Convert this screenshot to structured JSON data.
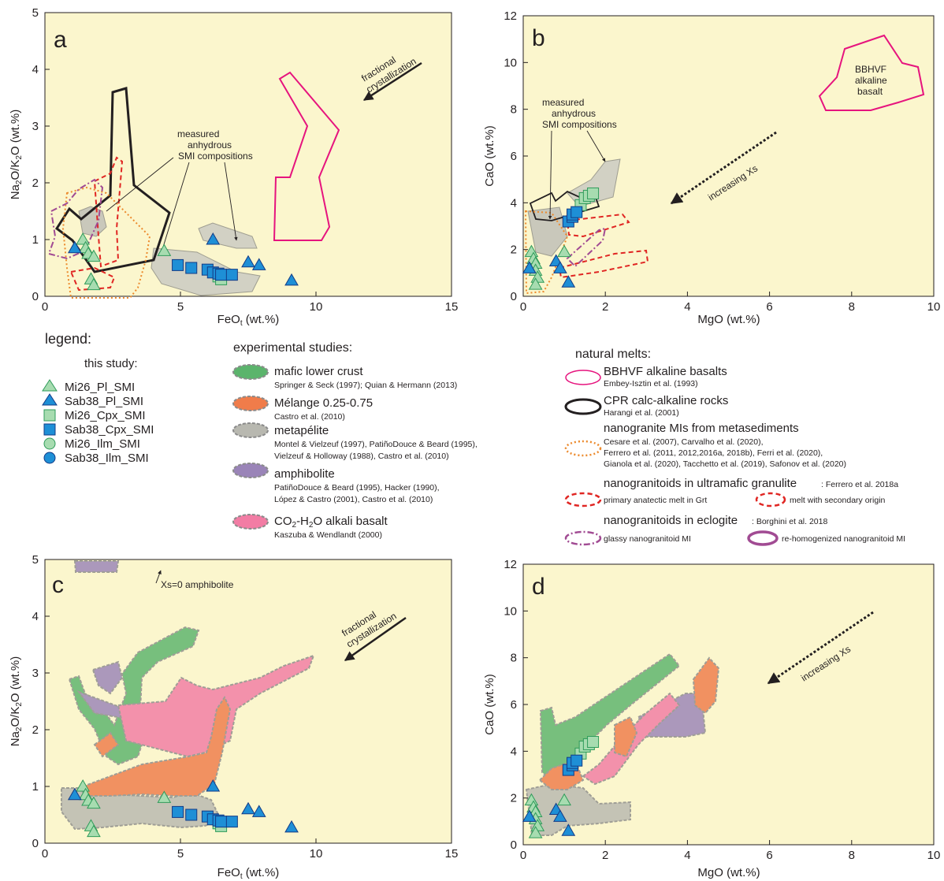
{
  "colors": {
    "bg": "#fbf6cd",
    "tri_green": "#a7dcb0",
    "tri_green_edge": "#2f9b5a",
    "tri_blue": "#1e8fd6",
    "tri_blue_edge": "#133b86",
    "sq_green": "#a7dcb0",
    "sq_blue": "#1e8fd6",
    "magenta": "#e6147e",
    "black": "#231f20",
    "orange": "#ec8a2d",
    "red": "#e02623",
    "purple": "#a14b93",
    "gray": "#b7b7ad",
    "exp_green": "#5bb46c",
    "exp_orange": "#f07c4a",
    "exp_gray": "#b8b8b0",
    "exp_purple": "#9a84b8",
    "exp_pink": "#f27ca4"
  },
  "panels": {
    "a": {
      "letter": "a",
      "xlabel": "FeOt (wt.%)",
      "ylabel": "Na2O/K2O (wt.%)",
      "xticks": [
        "0",
        "5",
        "10",
        "15"
      ],
      "yticks": [
        "0",
        "1",
        "2",
        "3",
        "4",
        "5"
      ]
    },
    "b": {
      "letter": "b",
      "xlabel": "MgO (wt.%)",
      "ylabel": "CaO (wt.%)",
      "xticks": [
        "0",
        "2",
        "4",
        "6",
        "8",
        "10"
      ],
      "yticks": [
        "0",
        "2",
        "4",
        "6",
        "8",
        "10",
        "12"
      ]
    },
    "c": {
      "letter": "c",
      "xlabel": "FeOt (wt.%)",
      "ylabel": "Na2O/K2O (wt.%)",
      "xticks": [
        "0",
        "5",
        "10",
        "15"
      ],
      "yticks": [
        "0",
        "1",
        "2",
        "3",
        "4",
        "5"
      ]
    },
    "d": {
      "letter": "d",
      "xlabel": "MgO (wt.%)",
      "ylabel": "CaO (wt.%)",
      "xticks": [
        "0",
        "2",
        "4",
        "6",
        "8",
        "10"
      ],
      "yticks": [
        "0",
        "2",
        "4",
        "6",
        "8",
        "10",
        "12"
      ]
    }
  },
  "annotations": {
    "frac1": "fractional",
    "frac2": "crystallization",
    "smi_a1": "measured",
    "smi_a2": "anhydrous",
    "smi_a3": "SMI compositions",
    "smi_b1": "measured",
    "smi_b2": "anhydrous",
    "smi_b3": "SMI compositions",
    "bbhvf1": "BBHVF",
    "bbhvf2": "alkaline",
    "bbhvf3": "basalt",
    "xs": "increasing Xs",
    "xs0": "Xs=0 amphibolite"
  },
  "legend": {
    "title": "legend:",
    "this_study": "this study:",
    "items": [
      "Mi26_Pl_SMI",
      "Sab38_Pl_SMI",
      "Mi26_Cpx_SMI",
      "Sab38_Cpx_SMI",
      "Mi26_Ilm_SMI",
      "Sab38_Ilm_SMI"
    ],
    "exp_title": "experimental studies:",
    "exp": [
      {
        "main": "mafic lower crust",
        "refs": [
          "Springer & Seck (1997); Quian & Hermann (2013)"
        ]
      },
      {
        "main": "Mélange 0.25-0.75",
        "refs": [
          "Castro et al. (2010)"
        ]
      },
      {
        "main": "metapélite",
        "refs": [
          "Montel & Vielzeuf (1997), PatiñoDouce & Beard (1995),",
          "Vielzeuf & Holloway (1988), Castro et al. (2010)"
        ]
      },
      {
        "main": "amphibolite",
        "refs": [
          "PatiñoDouce & Beard (1995), Hacker (1990),",
          "López & Castro (2001), Castro et al. (2010)"
        ]
      },
      {
        "main": "CO2-H2O alkali basalt",
        "refs": [
          "Kaszuba & Wendlandt (2000)"
        ]
      }
    ],
    "nat_title": "natural melts:",
    "nat": {
      "bbhvf": "BBHVF alkaline basalts",
      "bbhvf_ref": "Embey-Isztin et al. (1993)",
      "cpr": "CPR calc-alkaline rocks",
      "cpr_ref": "Harangi et al. (2001)",
      "nano": "nanogranite MIs from metasediments",
      "nano_refs": [
        "Cesare et al. (2007), Carvalho et al. (2020),",
        "Ferrero et al. (2011, 2012,2016a, 2018b), Ferri et al. (2020),",
        "Gianola et al. (2020), Tacchetto et al. (2019), Safonov et al. (2020)"
      ],
      "ultra": "nanogranitoids in ultramafic granulite",
      "ultra_ref": ": Ferrero et al. 2018a",
      "ultra_a": "primary anatectic melt in Grt",
      "ultra_b": "melt with secondary origin",
      "eclo": "nanogranitoids in eclogite",
      "eclo_ref": ": Borghini et al. 2018",
      "eclo_a": "glassy nanogranitoid MI",
      "eclo_b": "re-homogenized nanogranitoid MI"
    }
  },
  "chart_data": [
    {
      "panel": "a",
      "type": "scatter",
      "xlabel": "FeOt (wt.%)",
      "ylabel": "Na2O/K2O (wt.%)",
      "xlim": [
        0,
        15
      ],
      "ylim": [
        0,
        5
      ],
      "series": [
        {
          "name": "Mi26_Pl_SMI",
          "points": [
            [
              1.4,
              1.0
            ],
            [
              1.5,
              0.85
            ],
            [
              1.6,
              0.75
            ],
            [
              1.8,
              0.7
            ],
            [
              1.7,
              0.3
            ],
            [
              1.8,
              0.2
            ],
            [
              4.4,
              0.8
            ]
          ]
        },
        {
          "name": "Sab38_Pl_SMI",
          "points": [
            [
              1.1,
              0.85
            ],
            [
              6.2,
              1.0
            ],
            [
              7.5,
              0.6
            ],
            [
              7.9,
              0.55
            ],
            [
              9.1,
              0.28
            ]
          ]
        },
        {
          "name": "Mi26_Cpx_SMI",
          "points": [
            [
              6.4,
              0.35
            ],
            [
              6.5,
              0.3
            ]
          ]
        },
        {
          "name": "Sab38_Cpx_SMI",
          "points": [
            [
              4.9,
              0.55
            ],
            [
              5.4,
              0.5
            ],
            [
              6.0,
              0.47
            ],
            [
              6.2,
              0.42
            ],
            [
              6.4,
              0.4
            ],
            [
              6.5,
              0.38
            ],
            [
              6.9,
              0.38
            ]
          ]
        }
      ]
    },
    {
      "panel": "b",
      "type": "scatter",
      "xlabel": "MgO (wt.%)",
      "ylabel": "CaO (wt.%)",
      "xlim": [
        0,
        10
      ],
      "ylim": [
        0,
        12
      ],
      "series": [
        {
          "name": "Mi26_Pl_SMI",
          "points": [
            [
              0.2,
              1.9
            ],
            [
              0.25,
              1.6
            ],
            [
              0.3,
              1.4
            ],
            [
              0.3,
              1.1
            ],
            [
              0.35,
              0.8
            ],
            [
              0.3,
              0.5
            ],
            [
              1.0,
              1.9
            ]
          ]
        },
        {
          "name": "Sab38_Pl_SMI",
          "points": [
            [
              0.15,
              1.2
            ],
            [
              0.8,
              1.5
            ],
            [
              0.9,
              1.2
            ],
            [
              1.1,
              0.6
            ]
          ]
        },
        {
          "name": "Mi26_Cpx_SMI",
          "points": [
            [
              1.4,
              3.9
            ],
            [
              1.5,
              4.2
            ],
            [
              1.6,
              4.3
            ],
            [
              1.7,
              4.4
            ]
          ]
        },
        {
          "name": "Sab38_Cpx_SMI",
          "points": [
            [
              1.1,
              3.2
            ],
            [
              1.2,
              3.4
            ],
            [
              1.2,
              3.5
            ],
            [
              1.3,
              3.6
            ]
          ]
        }
      ]
    },
    {
      "panel": "c",
      "type": "scatter",
      "xlabel": "FeOt (wt.%)",
      "ylabel": "Na2O/K2O (wt.%)",
      "xlim": [
        0,
        15
      ],
      "ylim": [
        0,
        5
      ],
      "series": [
        {
          "name": "Mi26_Pl_SMI",
          "points": [
            [
              1.4,
              1.0
            ],
            [
              1.5,
              0.85
            ],
            [
              1.6,
              0.75
            ],
            [
              1.8,
              0.7
            ],
            [
              1.7,
              0.3
            ],
            [
              1.8,
              0.2
            ],
            [
              4.4,
              0.8
            ]
          ]
        },
        {
          "name": "Sab38_Pl_SMI",
          "points": [
            [
              1.1,
              0.85
            ],
            [
              6.2,
              1.0
            ],
            [
              7.5,
              0.6
            ],
            [
              7.9,
              0.55
            ],
            [
              9.1,
              0.28
            ]
          ]
        },
        {
          "name": "Mi26_Cpx_SMI",
          "points": [
            [
              6.4,
              0.35
            ],
            [
              6.5,
              0.3
            ]
          ]
        },
        {
          "name": "Sab38_Cpx_SMI",
          "points": [
            [
              4.9,
              0.55
            ],
            [
              5.4,
              0.5
            ],
            [
              6.0,
              0.47
            ],
            [
              6.2,
              0.42
            ],
            [
              6.4,
              0.4
            ],
            [
              6.5,
              0.38
            ],
            [
              6.9,
              0.38
            ]
          ]
        }
      ]
    },
    {
      "panel": "d",
      "type": "scatter",
      "xlabel": "MgO (wt.%)",
      "ylabel": "CaO (wt.%)",
      "xlim": [
        0,
        10
      ],
      "ylim": [
        0,
        12
      ],
      "series": [
        {
          "name": "Mi26_Pl_SMI",
          "points": [
            [
              0.2,
              1.9
            ],
            [
              0.25,
              1.6
            ],
            [
              0.3,
              1.4
            ],
            [
              0.3,
              1.1
            ],
            [
              0.35,
              0.8
            ],
            [
              0.3,
              0.5
            ],
            [
              1.0,
              1.9
            ]
          ]
        },
        {
          "name": "Sab38_Pl_SMI",
          "points": [
            [
              0.15,
              1.2
            ],
            [
              0.8,
              1.5
            ],
            [
              0.9,
              1.2
            ],
            [
              1.1,
              0.6
            ]
          ]
        },
        {
          "name": "Mi26_Cpx_SMI",
          "points": [
            [
              1.4,
              3.9
            ],
            [
              1.5,
              4.2
            ],
            [
              1.6,
              4.3
            ],
            [
              1.7,
              4.4
            ]
          ]
        },
        {
          "name": "Sab38_Cpx_SMI",
          "points": [
            [
              1.1,
              3.2
            ],
            [
              1.2,
              3.4
            ],
            [
              1.2,
              3.5
            ],
            [
              1.3,
              3.6
            ]
          ]
        }
      ]
    }
  ]
}
